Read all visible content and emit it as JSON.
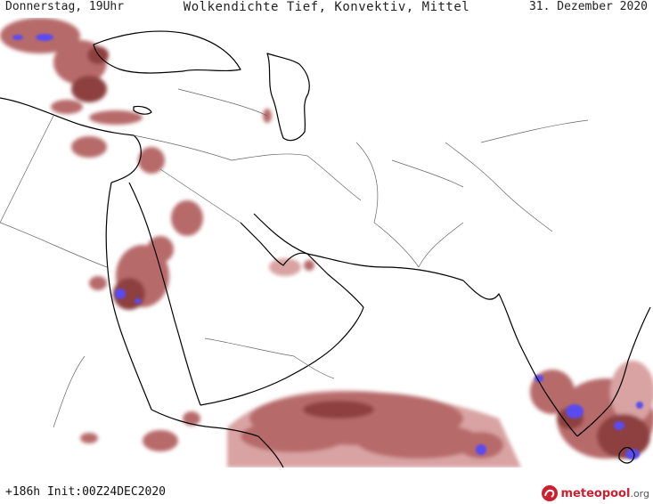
{
  "header": {
    "left": "Donnerstag, 19Uhr",
    "center": "Wolkendichte  Tief, Konvektiv, Mittel",
    "right": "31. Dezember 2020"
  },
  "footer": {
    "left": "+186h Init:00Z24DEC2020",
    "logo_brand": "meteopool",
    "logo_suffix": ".org"
  },
  "map": {
    "region": "Middle East / Arabian Peninsula / South Asia",
    "colors": {
      "coast": "#000000",
      "border": "#555555",
      "cloud_light": "#d9a3a3",
      "cloud_mid": "#b76a6a",
      "cloud_dark": "#8e3f3f",
      "cloud_peak": "#5a4cf0"
    },
    "icon": "meteopool-logo-icon"
  }
}
